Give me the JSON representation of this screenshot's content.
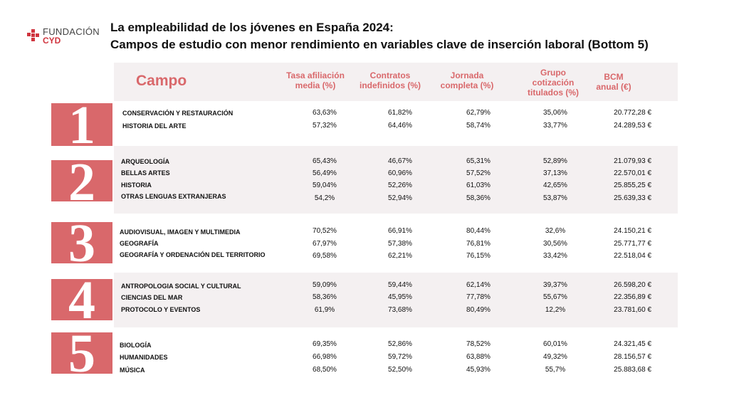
{
  "brand": {
    "line1": "FUNDACIÓN",
    "line2": "CYD"
  },
  "title": {
    "line1": "La empleabilidad de los jóvenes en España 2024:",
    "line2": "Campos de estudio con menor rendimiento en variables clave de inserción laboral (Bottom 5)"
  },
  "colors": {
    "accent": "#d9686b",
    "band": "#f4f0f1",
    "logo": "#d0353f"
  },
  "table": {
    "campo_header": "Campo",
    "headers": [
      "Tasa afiliación media (%)",
      "Contratos indefinidos (%)",
      "Jornada completa (%)",
      "Grupo cotización titulados (%)",
      "BCM anual (€)"
    ],
    "groups": [
      {
        "rank": "1",
        "rows": [
          {
            "name": "CONSERVACIÓN Y RESTAURACIÓN",
            "values": [
              "63,63%",
              "61,82%",
              "62,79%",
              "35,06%",
              "20.772,28 €"
            ]
          },
          {
            "name": "HISTORIA DEL ARTE",
            "values": [
              "57,32%",
              "64,46%",
              "58,74%",
              "33,77%",
              "24.289,53 €"
            ]
          }
        ]
      },
      {
        "rank": "2",
        "rows": [
          {
            "name": "ARQUEOLOGÍA",
            "values": [
              "65,43%",
              "46,67%",
              "65,31%",
              "52,89%",
              "21.079,93 €"
            ]
          },
          {
            "name": "BELLAS ARTES",
            "values": [
              "56,49%",
              "60,96%",
              "57,52%",
              "37,13%",
              "22.570,01 €"
            ]
          },
          {
            "name": "HISTORIA",
            "values": [
              "59,04%",
              "52,26%",
              "61,03%",
              "42,65%",
              "25.855,25 €"
            ]
          },
          {
            "name": "OTRAS LENGUAS EXTRANJERAS",
            "values": [
              "54,2%",
              "52,94%",
              "58,36%",
              "53,87%",
              "25.639,33 €"
            ]
          }
        ]
      },
      {
        "rank": "3",
        "rows": [
          {
            "name": "AUDIOVISUAL, IMAGEN Y MULTIMEDIA",
            "values": [
              "70,52%",
              "66,91%",
              "80,44%",
              "32,6%",
              "24.150,21 €"
            ]
          },
          {
            "name": "GEOGRAFÍA",
            "values": [
              "67,97%",
              "57,38%",
              "76,81%",
              "30,56%",
              "25.771,77 €"
            ]
          },
          {
            "name": "GEOGRAFÍA Y ORDENACIÓN DEL TERRITORIO",
            "values": [
              "69,58%",
              "62,21%",
              "76,15%",
              "33,42%",
              "22.518,04 €"
            ]
          }
        ]
      },
      {
        "rank": "4",
        "rows": [
          {
            "name": "ANTROPOLOGIA SOCIAL Y CULTURAL",
            "values": [
              "59,09%",
              "59,44%",
              "62,14%",
              "39,37%",
              "26.598,20 €"
            ]
          },
          {
            "name": "CIENCIAS DEL MAR",
            "values": [
              "58,36%",
              "45,95%",
              "77,78%",
              "55,67%",
              "22.356,89 €"
            ]
          },
          {
            "name": "PROTOCOLO Y EVENTOS",
            "values": [
              "61,9%",
              "73,68%",
              "80,49%",
              "12,2%",
              "23.781,60 €"
            ]
          }
        ]
      },
      {
        "rank": "5",
        "rows": [
          {
            "name": "BIOLOGÍA",
            "values": [
              "69,35%",
              "52,86%",
              "78,52%",
              "60,01%",
              "24.321,45 €"
            ]
          },
          {
            "name": "HUMANIDADES",
            "values": [
              "66,98%",
              "59,72%",
              "63,88%",
              "49,32%",
              "28.156,57 €"
            ]
          },
          {
            "name": "MÚSICA",
            "values": [
              "68,50%",
              "52,50%",
              "45,93%",
              "55,7%",
              "25.883,68 €"
            ]
          }
        ]
      }
    ]
  }
}
